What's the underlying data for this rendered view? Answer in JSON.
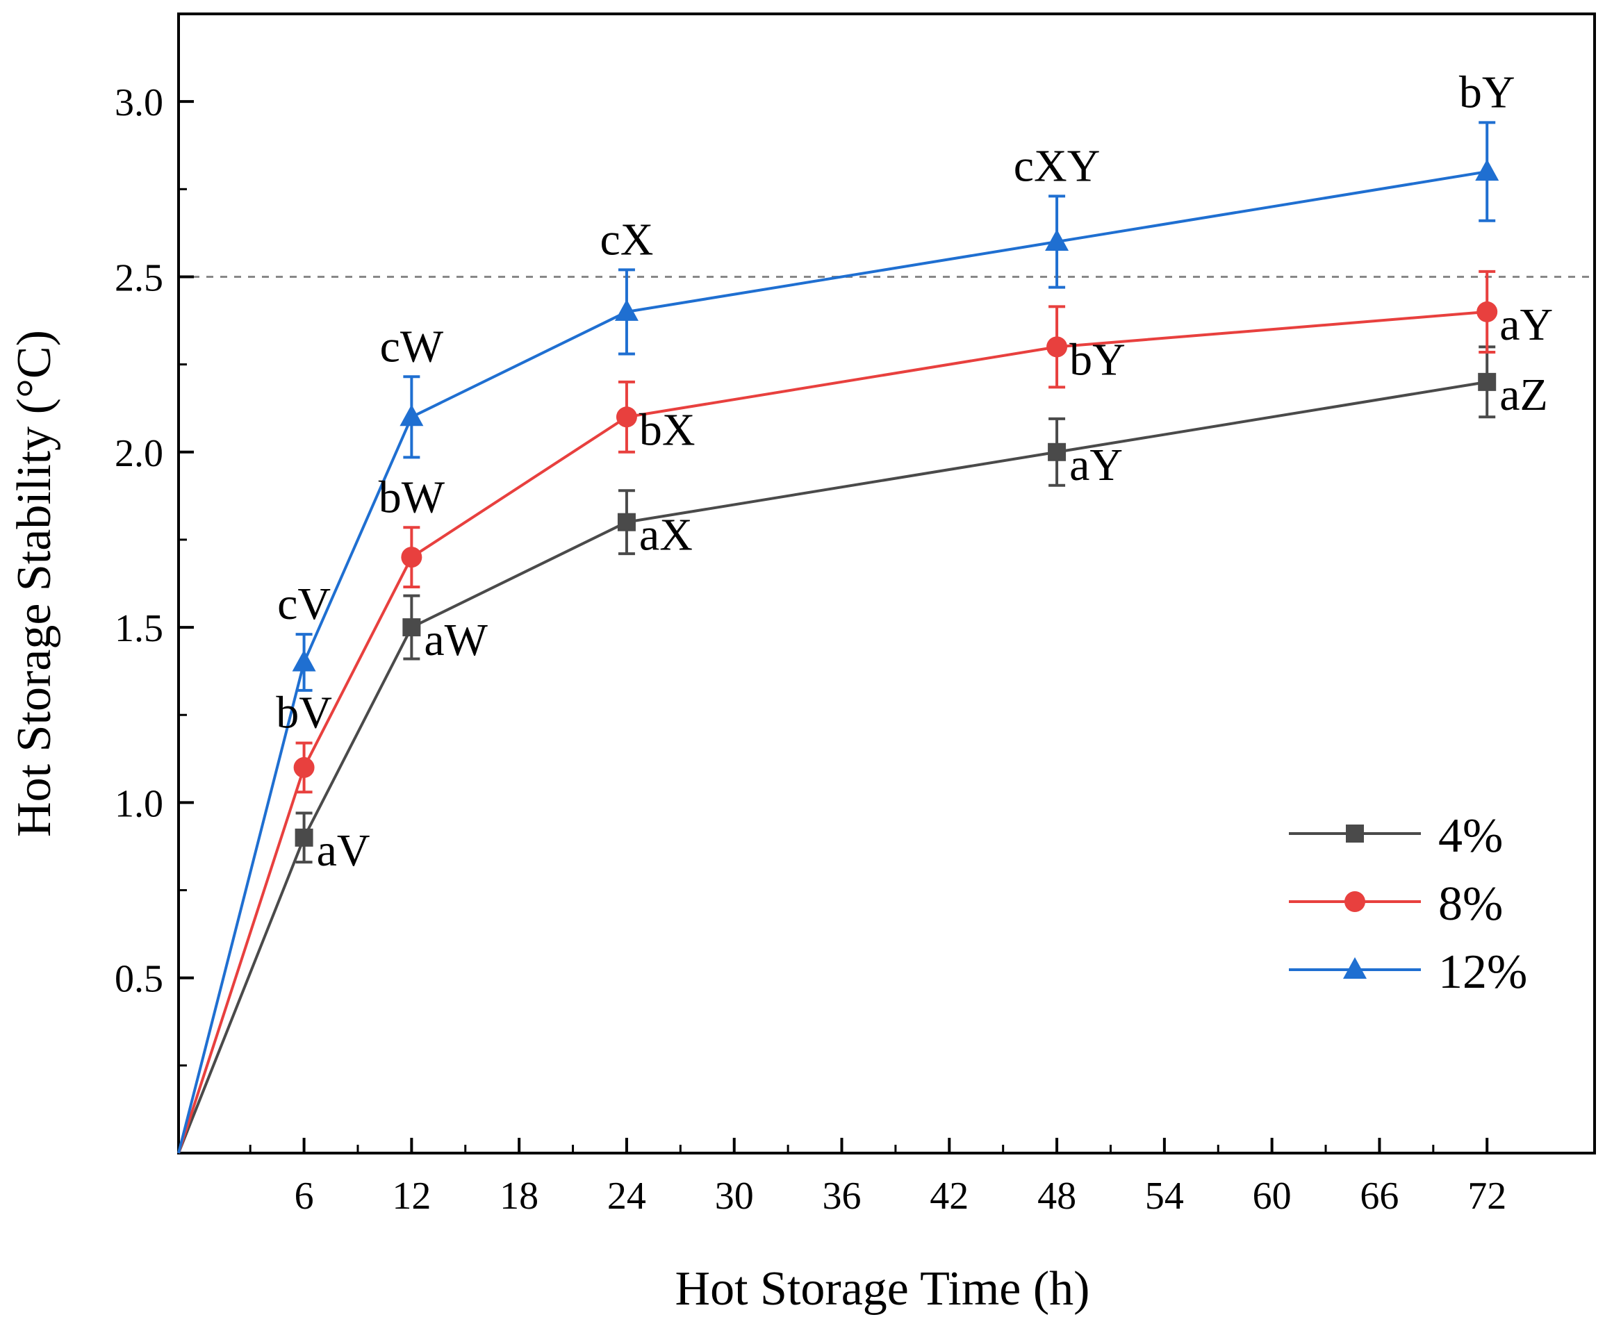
{
  "chart_data": {
    "type": "line",
    "xlabel": "Hot Storage Time (h)",
    "ylabel": "Hot Storage Stability (°C)",
    "xlim": [
      -1,
      78
    ],
    "ylim": [
      0,
      3.25
    ],
    "xticks": [
      6,
      12,
      18,
      24,
      30,
      36,
      42,
      48,
      54,
      60,
      66,
      72
    ],
    "yticks": [
      0.5,
      1.0,
      1.5,
      2.0,
      2.5,
      3.0
    ],
    "ytick_labels": [
      "0.5",
      "1.0",
      "1.5",
      "2.0",
      "2.5",
      "3.0"
    ],
    "reference_line": {
      "y": 2.5,
      "style": "dashed",
      "color": "#888888"
    },
    "legend_position": "bottom-right",
    "series": [
      {
        "name": "4%",
        "color": "#4a4a4a",
        "marker": "square",
        "x": [
          -1,
          6,
          12,
          24,
          48,
          72
        ],
        "y": [
          0,
          0.9,
          1.5,
          1.8,
          2.0,
          2.2
        ],
        "err": [
          0,
          0.07,
          0.09,
          0.09,
          0.095,
          0.1
        ],
        "labels": [
          "",
          "aV",
          "aW",
          "aX",
          "aY",
          "aZ"
        ],
        "label_pos": [
          "",
          "right",
          "right",
          "right",
          "right",
          "right"
        ]
      },
      {
        "name": "8%",
        "color": "#e8403e",
        "marker": "circle",
        "x": [
          -1,
          6,
          12,
          24,
          48,
          72
        ],
        "y": [
          0,
          1.1,
          1.7,
          2.1,
          2.3,
          2.4
        ],
        "err": [
          0,
          0.07,
          0.085,
          0.1,
          0.115,
          0.115
        ],
        "labels": [
          "",
          "bV",
          "bW",
          "bX",
          "bY",
          "aY"
        ],
        "label_pos": [
          "",
          "above",
          "above",
          "right",
          "right",
          "right"
        ]
      },
      {
        "name": "12%",
        "color": "#1f6fd1",
        "marker": "triangle",
        "x": [
          -1,
          6,
          12,
          24,
          48,
          72
        ],
        "y": [
          0,
          1.4,
          2.1,
          2.4,
          2.6,
          2.8
        ],
        "err": [
          0,
          0.08,
          0.115,
          0.12,
          0.13,
          0.14
        ],
        "labels": [
          "",
          "cV",
          "cW",
          "cX",
          "cXY",
          "bY"
        ],
        "label_pos": [
          "",
          "above",
          "above",
          "above",
          "above",
          "above"
        ]
      }
    ]
  }
}
